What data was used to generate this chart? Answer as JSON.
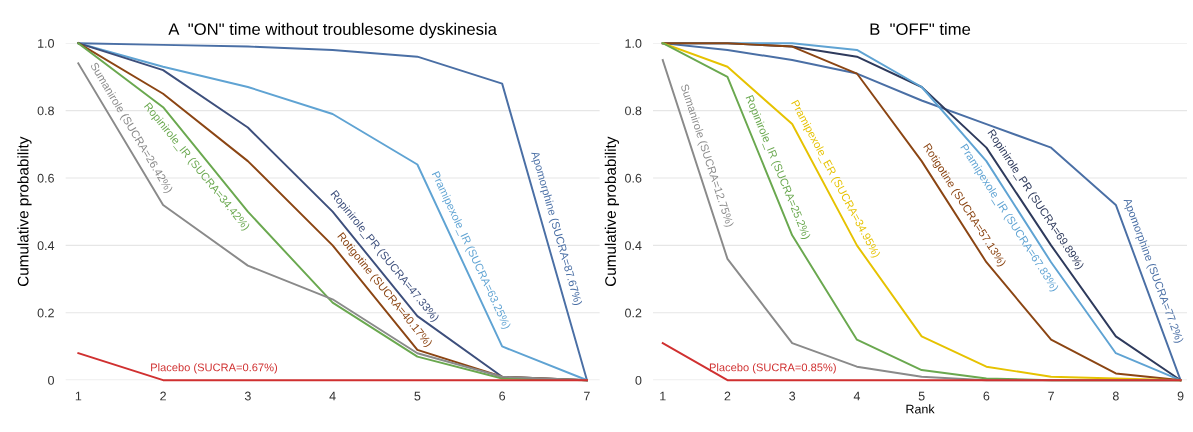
{
  "chart_data": [
    {
      "type": "line",
      "title": "A  \"ON\" time without troublesome dyskinesia",
      "ylabel": "Cumulative probability",
      "x": [
        1,
        2,
        3,
        4,
        5,
        6,
        7
      ],
      "xlim": [
        0.85,
        7.15
      ],
      "xticks": [
        1,
        2,
        3,
        4,
        5,
        6,
        7
      ],
      "ylim": [
        0,
        1.0
      ],
      "yticks": [
        0,
        0.2,
        0.4,
        0.6,
        0.8,
        {
          "value": 1.0,
          "label": "1.0"
        }
      ],
      "grid": "y",
      "marker": "none",
      "line_style": "solid",
      "series": [
        {
          "name": "Apomorphine (SUCRA=87.67%)",
          "color": "#4a6fa5",
          "values": [
            1.0,
            0.995,
            0.99,
            0.98,
            0.96,
            0.88,
            0
          ]
        },
        {
          "name": "Pramipexole_IR (SUCRA=63.25%)",
          "color": "#5fa3d3",
          "values": [
            1.0,
            0.93,
            0.87,
            0.79,
            0.64,
            0.1,
            0
          ]
        },
        {
          "name": "Ropinirole_PR (SUCRA=47.33%)",
          "color": "#3d4f7c",
          "values": [
            1.0,
            0.92,
            0.75,
            0.5,
            0.19,
            0.01,
            0
          ]
        },
        {
          "name": "Rotigotine (SUCRA=40.17%)",
          "color": "#8b4513",
          "values": [
            1.0,
            0.85,
            0.65,
            0.4,
            0.09,
            0.01,
            0
          ]
        },
        {
          "name": "Ropinirole_IR (SUCRA=34.42%)",
          "color": "#6aa84f",
          "values": [
            1.0,
            0.81,
            0.5,
            0.23,
            0.07,
            0.005,
            0
          ]
        },
        {
          "name": "Sumanirole (SUCRA=26.42%)",
          "color": "#8a8a8a",
          "values": [
            0.94,
            0.52,
            0.34,
            0.24,
            0.08,
            0.01,
            0
          ]
        },
        {
          "name": "Placebo (SUCRA=0.67%)",
          "color": "#d03030",
          "values": [
            0.08,
            0,
            0,
            0,
            0,
            0,
            0
          ]
        }
      ]
    },
    {
      "type": "line",
      "title": "B  \"OFF\" time",
      "xlabel": "Rank",
      "ylabel": "Cumulative probability",
      "x": [
        1,
        2,
        3,
        4,
        5,
        6,
        7,
        8,
        9
      ],
      "xlim": [
        0.85,
        9.1
      ],
      "xticks": [
        1,
        2,
        3,
        4,
        5,
        6,
        7,
        8,
        9
      ],
      "ylim": [
        0,
        1.0
      ],
      "yticks": [
        0,
        0.2,
        0.4,
        0.6,
        0.8,
        {
          "value": 1.0,
          "label": "1.0"
        }
      ],
      "grid": "y",
      "marker": "none",
      "line_style": "solid",
      "series": [
        {
          "name": "Apomorphine (SUCRA=77.2%)",
          "color": "#4a6fa5",
          "values": [
            1.0,
            0.98,
            0.95,
            0.91,
            0.83,
            0.76,
            0.69,
            0.52,
            0
          ]
        },
        {
          "name": "Ropinirole_PR (SUCRA=69.89%)",
          "color": "#2e3a5c",
          "values": [
            1.0,
            1.0,
            0.99,
            0.96,
            0.87,
            0.69,
            0.4,
            0.13,
            0
          ]
        },
        {
          "name": "Pramipexole_IR (SUCRA=67.83%)",
          "color": "#5fa3d3",
          "values": [
            1.0,
            1.0,
            1.0,
            0.98,
            0.87,
            0.65,
            0.35,
            0.08,
            0
          ]
        },
        {
          "name": "Rotigotine (SUCRA=57.13%)",
          "color": "#8b4513",
          "values": [
            1.0,
            1.0,
            0.99,
            0.91,
            0.65,
            0.35,
            0.12,
            0.02,
            0
          ]
        },
        {
          "name": "Pramipexole_ER (SUCRA=34.95%)",
          "color": "#e6c200",
          "values": [
            1.0,
            0.93,
            0.76,
            0.4,
            0.13,
            0.04,
            0.01,
            0.005,
            0
          ]
        },
        {
          "name": "Ropinirole_IR (SUCRA=25.2%)",
          "color": "#6aa84f",
          "values": [
            1.0,
            0.9,
            0.43,
            0.12,
            0.03,
            0.005,
            0,
            0,
            0
          ]
        },
        {
          "name": "Sumanirole (SUCRA=12.75%)",
          "color": "#8a8a8a",
          "values": [
            0.95,
            0.36,
            0.11,
            0.04,
            0.01,
            0,
            0,
            0,
            0
          ]
        },
        {
          "name": "Placebo (SUCRA=0.85%)",
          "color": "#d03030",
          "values": [
            0.11,
            0,
            0,
            0,
            0,
            0,
            0,
            0,
            0
          ]
        }
      ]
    }
  ]
}
